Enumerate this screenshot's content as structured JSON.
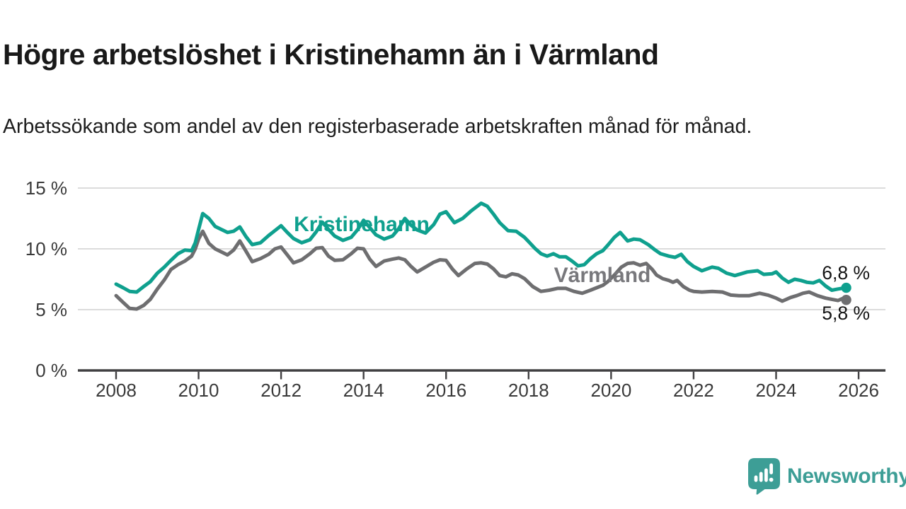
{
  "header": {
    "title": "Högre arbetslöshet i Kristinehamn än i Värmland",
    "subtitle": "Arbetssökande som andel av den registerbaserade arbetskraften månad för månad."
  },
  "chart_data": {
    "type": "line",
    "title": "Högre arbetslöshet i Kristinehamn än i Värmland",
    "subtitle": "Arbetssökande som andel av den registerbaserade arbetskraften månad för månad.",
    "x_axis": {
      "unit": "year",
      "ticks": [
        2008,
        2010,
        2012,
        2014,
        2016,
        2018,
        2020,
        2022,
        2024,
        2026
      ],
      "tick_labels": [
        "2008",
        "2010",
        "2012",
        "2014",
        "2016",
        "2018",
        "2020",
        "2022",
        "2024",
        "2026"
      ],
      "range": [
        2007.9,
        2026.6
      ]
    },
    "y_axis": {
      "unit": "%",
      "ticks": [
        {
          "value": 0,
          "label": "0 %"
        },
        {
          "value": 5,
          "label": "5 %"
        },
        {
          "value": 10,
          "label": "10 %"
        },
        {
          "value": 15,
          "label": "15 %"
        }
      ],
      "range": [
        0,
        15
      ],
      "grid": true
    },
    "legend_position": "inline-labels",
    "colors": {
      "grid": "#dcdcdc",
      "axis": "#414042",
      "tick_text": "#3a3a3a",
      "value_label_text": "#141414"
    },
    "series": [
      {
        "name": "Kristinehamn",
        "color": "#0FA08E",
        "label_color": "#0FA08E",
        "end_label": "6,8 %",
        "end_value": 6.8,
        "points": [
          [
            2008.0,
            7.1
          ],
          [
            2008.17,
            6.8
          ],
          [
            2008.33,
            6.5
          ],
          [
            2008.5,
            6.45
          ],
          [
            2008.67,
            6.9
          ],
          [
            2008.83,
            7.3
          ],
          [
            2009.0,
            8.0
          ],
          [
            2009.17,
            8.5
          ],
          [
            2009.33,
            9.05
          ],
          [
            2009.5,
            9.6
          ],
          [
            2009.67,
            9.9
          ],
          [
            2009.83,
            9.85
          ],
          [
            2009.92,
            10.5
          ],
          [
            2010.0,
            11.6
          ],
          [
            2010.1,
            12.9
          ],
          [
            2010.25,
            12.5
          ],
          [
            2010.4,
            11.85
          ],
          [
            2010.55,
            11.6
          ],
          [
            2010.7,
            11.35
          ],
          [
            2010.85,
            11.45
          ],
          [
            2011.0,
            11.8
          ],
          [
            2011.15,
            11.0
          ],
          [
            2011.3,
            10.35
          ],
          [
            2011.5,
            10.5
          ],
          [
            2011.7,
            11.1
          ],
          [
            2011.85,
            11.5
          ],
          [
            2012.0,
            11.9
          ],
          [
            2012.15,
            11.35
          ],
          [
            2012.3,
            10.85
          ],
          [
            2012.5,
            10.5
          ],
          [
            2012.7,
            10.75
          ],
          [
            2012.85,
            11.4
          ],
          [
            2013.0,
            12.2
          ],
          [
            2013.15,
            11.6
          ],
          [
            2013.3,
            11.05
          ],
          [
            2013.5,
            10.7
          ],
          [
            2013.7,
            10.95
          ],
          [
            2013.85,
            11.55
          ],
          [
            2014.0,
            12.35
          ],
          [
            2014.15,
            11.75
          ],
          [
            2014.3,
            11.15
          ],
          [
            2014.5,
            10.8
          ],
          [
            2014.7,
            11.05
          ],
          [
            2014.85,
            11.65
          ],
          [
            2015.0,
            12.5
          ],
          [
            2015.15,
            11.95
          ],
          [
            2015.3,
            11.55
          ],
          [
            2015.5,
            11.3
          ],
          [
            2015.7,
            12.0
          ],
          [
            2015.85,
            12.85
          ],
          [
            2016.0,
            13.05
          ],
          [
            2016.2,
            12.15
          ],
          [
            2016.4,
            12.5
          ],
          [
            2016.6,
            13.1
          ],
          [
            2016.85,
            13.75
          ],
          [
            2017.0,
            13.5
          ],
          [
            2017.15,
            12.85
          ],
          [
            2017.3,
            12.15
          ],
          [
            2017.5,
            11.5
          ],
          [
            2017.7,
            11.45
          ],
          [
            2017.9,
            10.95
          ],
          [
            2018.0,
            10.6
          ],
          [
            2018.15,
            10.05
          ],
          [
            2018.3,
            9.6
          ],
          [
            2018.45,
            9.4
          ],
          [
            2018.6,
            9.6
          ],
          [
            2018.75,
            9.35
          ],
          [
            2018.9,
            9.35
          ],
          [
            2019.05,
            9.0
          ],
          [
            2019.2,
            8.6
          ],
          [
            2019.35,
            8.7
          ],
          [
            2019.5,
            9.2
          ],
          [
            2019.65,
            9.6
          ],
          [
            2019.8,
            9.85
          ],
          [
            2019.92,
            10.3
          ],
          [
            2020.08,
            10.95
          ],
          [
            2020.22,
            11.35
          ],
          [
            2020.4,
            10.65
          ],
          [
            2020.55,
            10.8
          ],
          [
            2020.7,
            10.75
          ],
          [
            2020.9,
            10.35
          ],
          [
            2021.05,
            9.95
          ],
          [
            2021.2,
            9.6
          ],
          [
            2021.4,
            9.4
          ],
          [
            2021.55,
            9.3
          ],
          [
            2021.7,
            9.55
          ],
          [
            2021.85,
            8.95
          ],
          [
            2022.0,
            8.55
          ],
          [
            2022.2,
            8.2
          ],
          [
            2022.45,
            8.5
          ],
          [
            2022.6,
            8.4
          ],
          [
            2022.8,
            8.0
          ],
          [
            2023.0,
            7.8
          ],
          [
            2023.15,
            7.95
          ],
          [
            2023.3,
            8.1
          ],
          [
            2023.55,
            8.2
          ],
          [
            2023.7,
            7.9
          ],
          [
            2023.9,
            7.95
          ],
          [
            2024.0,
            8.1
          ],
          [
            2024.15,
            7.6
          ],
          [
            2024.3,
            7.25
          ],
          [
            2024.45,
            7.5
          ],
          [
            2024.6,
            7.4
          ],
          [
            2024.75,
            7.25
          ],
          [
            2024.9,
            7.2
          ],
          [
            2025.05,
            7.4
          ],
          [
            2025.2,
            6.95
          ],
          [
            2025.35,
            6.6
          ],
          [
            2025.5,
            6.7
          ],
          [
            2025.6,
            6.75
          ],
          [
            2025.7,
            6.8
          ]
        ]
      },
      {
        "name": "Värmland",
        "color": "#6E6E70",
        "label_color": "#78787c",
        "end_label": "5,8 %",
        "end_value": 5.8,
        "points": [
          [
            2008.0,
            6.15
          ],
          [
            2008.17,
            5.6
          ],
          [
            2008.33,
            5.1
          ],
          [
            2008.5,
            5.05
          ],
          [
            2008.67,
            5.35
          ],
          [
            2008.83,
            5.85
          ],
          [
            2009.0,
            6.7
          ],
          [
            2009.17,
            7.45
          ],
          [
            2009.33,
            8.3
          ],
          [
            2009.5,
            8.7
          ],
          [
            2009.67,
            9.0
          ],
          [
            2009.83,
            9.4
          ],
          [
            2009.92,
            10.0
          ],
          [
            2010.0,
            10.8
          ],
          [
            2010.1,
            11.45
          ],
          [
            2010.25,
            10.45
          ],
          [
            2010.4,
            10.0
          ],
          [
            2010.55,
            9.75
          ],
          [
            2010.7,
            9.5
          ],
          [
            2010.85,
            9.9
          ],
          [
            2011.0,
            10.65
          ],
          [
            2011.15,
            9.8
          ],
          [
            2011.3,
            8.95
          ],
          [
            2011.5,
            9.2
          ],
          [
            2011.7,
            9.55
          ],
          [
            2011.85,
            10.0
          ],
          [
            2012.0,
            10.15
          ],
          [
            2012.15,
            9.5
          ],
          [
            2012.3,
            8.85
          ],
          [
            2012.5,
            9.1
          ],
          [
            2012.7,
            9.6
          ],
          [
            2012.85,
            10.05
          ],
          [
            2013.0,
            10.1
          ],
          [
            2013.15,
            9.4
          ],
          [
            2013.3,
            9.05
          ],
          [
            2013.5,
            9.1
          ],
          [
            2013.7,
            9.6
          ],
          [
            2013.85,
            10.05
          ],
          [
            2014.0,
            10.0
          ],
          [
            2014.15,
            9.15
          ],
          [
            2014.3,
            8.55
          ],
          [
            2014.5,
            9.0
          ],
          [
            2014.7,
            9.15
          ],
          [
            2014.85,
            9.25
          ],
          [
            2015.0,
            9.1
          ],
          [
            2015.15,
            8.55
          ],
          [
            2015.3,
            8.1
          ],
          [
            2015.5,
            8.5
          ],
          [
            2015.7,
            8.9
          ],
          [
            2015.85,
            9.1
          ],
          [
            2016.0,
            9.05
          ],
          [
            2016.15,
            8.35
          ],
          [
            2016.3,
            7.8
          ],
          [
            2016.5,
            8.35
          ],
          [
            2016.7,
            8.8
          ],
          [
            2016.85,
            8.85
          ],
          [
            2017.0,
            8.75
          ],
          [
            2017.15,
            8.35
          ],
          [
            2017.3,
            7.8
          ],
          [
            2017.45,
            7.7
          ],
          [
            2017.6,
            7.95
          ],
          [
            2017.75,
            7.85
          ],
          [
            2017.9,
            7.55
          ],
          [
            2018.1,
            6.9
          ],
          [
            2018.3,
            6.5
          ],
          [
            2018.5,
            6.6
          ],
          [
            2018.7,
            6.75
          ],
          [
            2018.9,
            6.75
          ],
          [
            2019.1,
            6.5
          ],
          [
            2019.3,
            6.35
          ],
          [
            2019.5,
            6.6
          ],
          [
            2019.65,
            6.8
          ],
          [
            2019.8,
            7.0
          ],
          [
            2019.92,
            7.3
          ],
          [
            2020.08,
            7.85
          ],
          [
            2020.25,
            8.5
          ],
          [
            2020.4,
            8.8
          ],
          [
            2020.55,
            8.85
          ],
          [
            2020.7,
            8.65
          ],
          [
            2020.85,
            8.8
          ],
          [
            2021.0,
            8.3
          ],
          [
            2021.1,
            7.85
          ],
          [
            2021.25,
            7.55
          ],
          [
            2021.4,
            7.4
          ],
          [
            2021.5,
            7.25
          ],
          [
            2021.6,
            7.4
          ],
          [
            2021.75,
            6.9
          ],
          [
            2021.9,
            6.6
          ],
          [
            2022.0,
            6.5
          ],
          [
            2022.2,
            6.45
          ],
          [
            2022.45,
            6.5
          ],
          [
            2022.7,
            6.45
          ],
          [
            2022.9,
            6.2
          ],
          [
            2023.1,
            6.15
          ],
          [
            2023.35,
            6.15
          ],
          [
            2023.6,
            6.35
          ],
          [
            2023.8,
            6.2
          ],
          [
            2024.0,
            5.95
          ],
          [
            2024.15,
            5.7
          ],
          [
            2024.35,
            6.0
          ],
          [
            2024.5,
            6.15
          ],
          [
            2024.65,
            6.35
          ],
          [
            2024.8,
            6.45
          ],
          [
            2025.0,
            6.15
          ],
          [
            2025.2,
            5.95
          ],
          [
            2025.35,
            5.85
          ],
          [
            2025.5,
            5.75
          ],
          [
            2025.6,
            5.9
          ],
          [
            2025.7,
            5.8
          ]
        ]
      }
    ]
  },
  "branding": {
    "logo_text": "Newsworthy",
    "logo_color": "#3d9e96",
    "logo_icon": "speech-bubble-bar-chart-exclamation"
  }
}
